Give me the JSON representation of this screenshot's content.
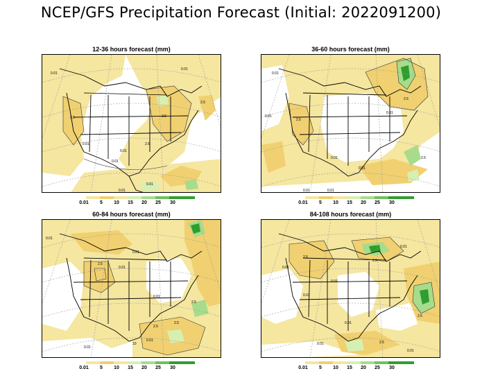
{
  "title": "NCEP/GFS Precipitation Forecast (Initial: 2022091200)",
  "colors": {
    "level_1": "#f5e6a0",
    "level_2": "#f0d070",
    "level_3": "#d7efb0",
    "level_4": "#a6dc8c",
    "level_5": "#6cc35a",
    "level_6": "#2f9e2f",
    "border": "#000000",
    "graticule": "#9a9a9a"
  },
  "legend": {
    "labels": [
      "0.01",
      "5",
      "10",
      "15",
      "20",
      "25",
      "30"
    ]
  },
  "panels": [
    {
      "title": "12-36 hours forecast (mm)",
      "contour_labels": [
        "0.01",
        "2.5",
        "0.01",
        "2.5",
        "0.01",
        "2.5",
        "0.01",
        "0.01",
        "2.5",
        "0.01",
        "0.01"
      ]
    },
    {
      "title": "36-60 hours forecast (mm)",
      "contour_labels": [
        "0.01",
        "2.5",
        "0.01",
        "0.01",
        "2.5",
        "0.01",
        "0.01",
        "2.5",
        "0.01",
        "0.01"
      ]
    },
    {
      "title": "60-84 hours forecast (mm)",
      "contour_labels": [
        "0.01",
        "2.5",
        "0.01",
        "0.01",
        "2.5",
        "0.01",
        "2.5",
        "0.01",
        "2.5",
        "0.01",
        "10"
      ]
    },
    {
      "title": "84-108 hours forecast (mm)",
      "contour_labels": [
        "0.01",
        "2.5",
        "0.01",
        "0.01",
        "2.5",
        "0.01",
        "0.01",
        "2.5",
        "0.01",
        "2.5",
        "0.01"
      ]
    }
  ]
}
